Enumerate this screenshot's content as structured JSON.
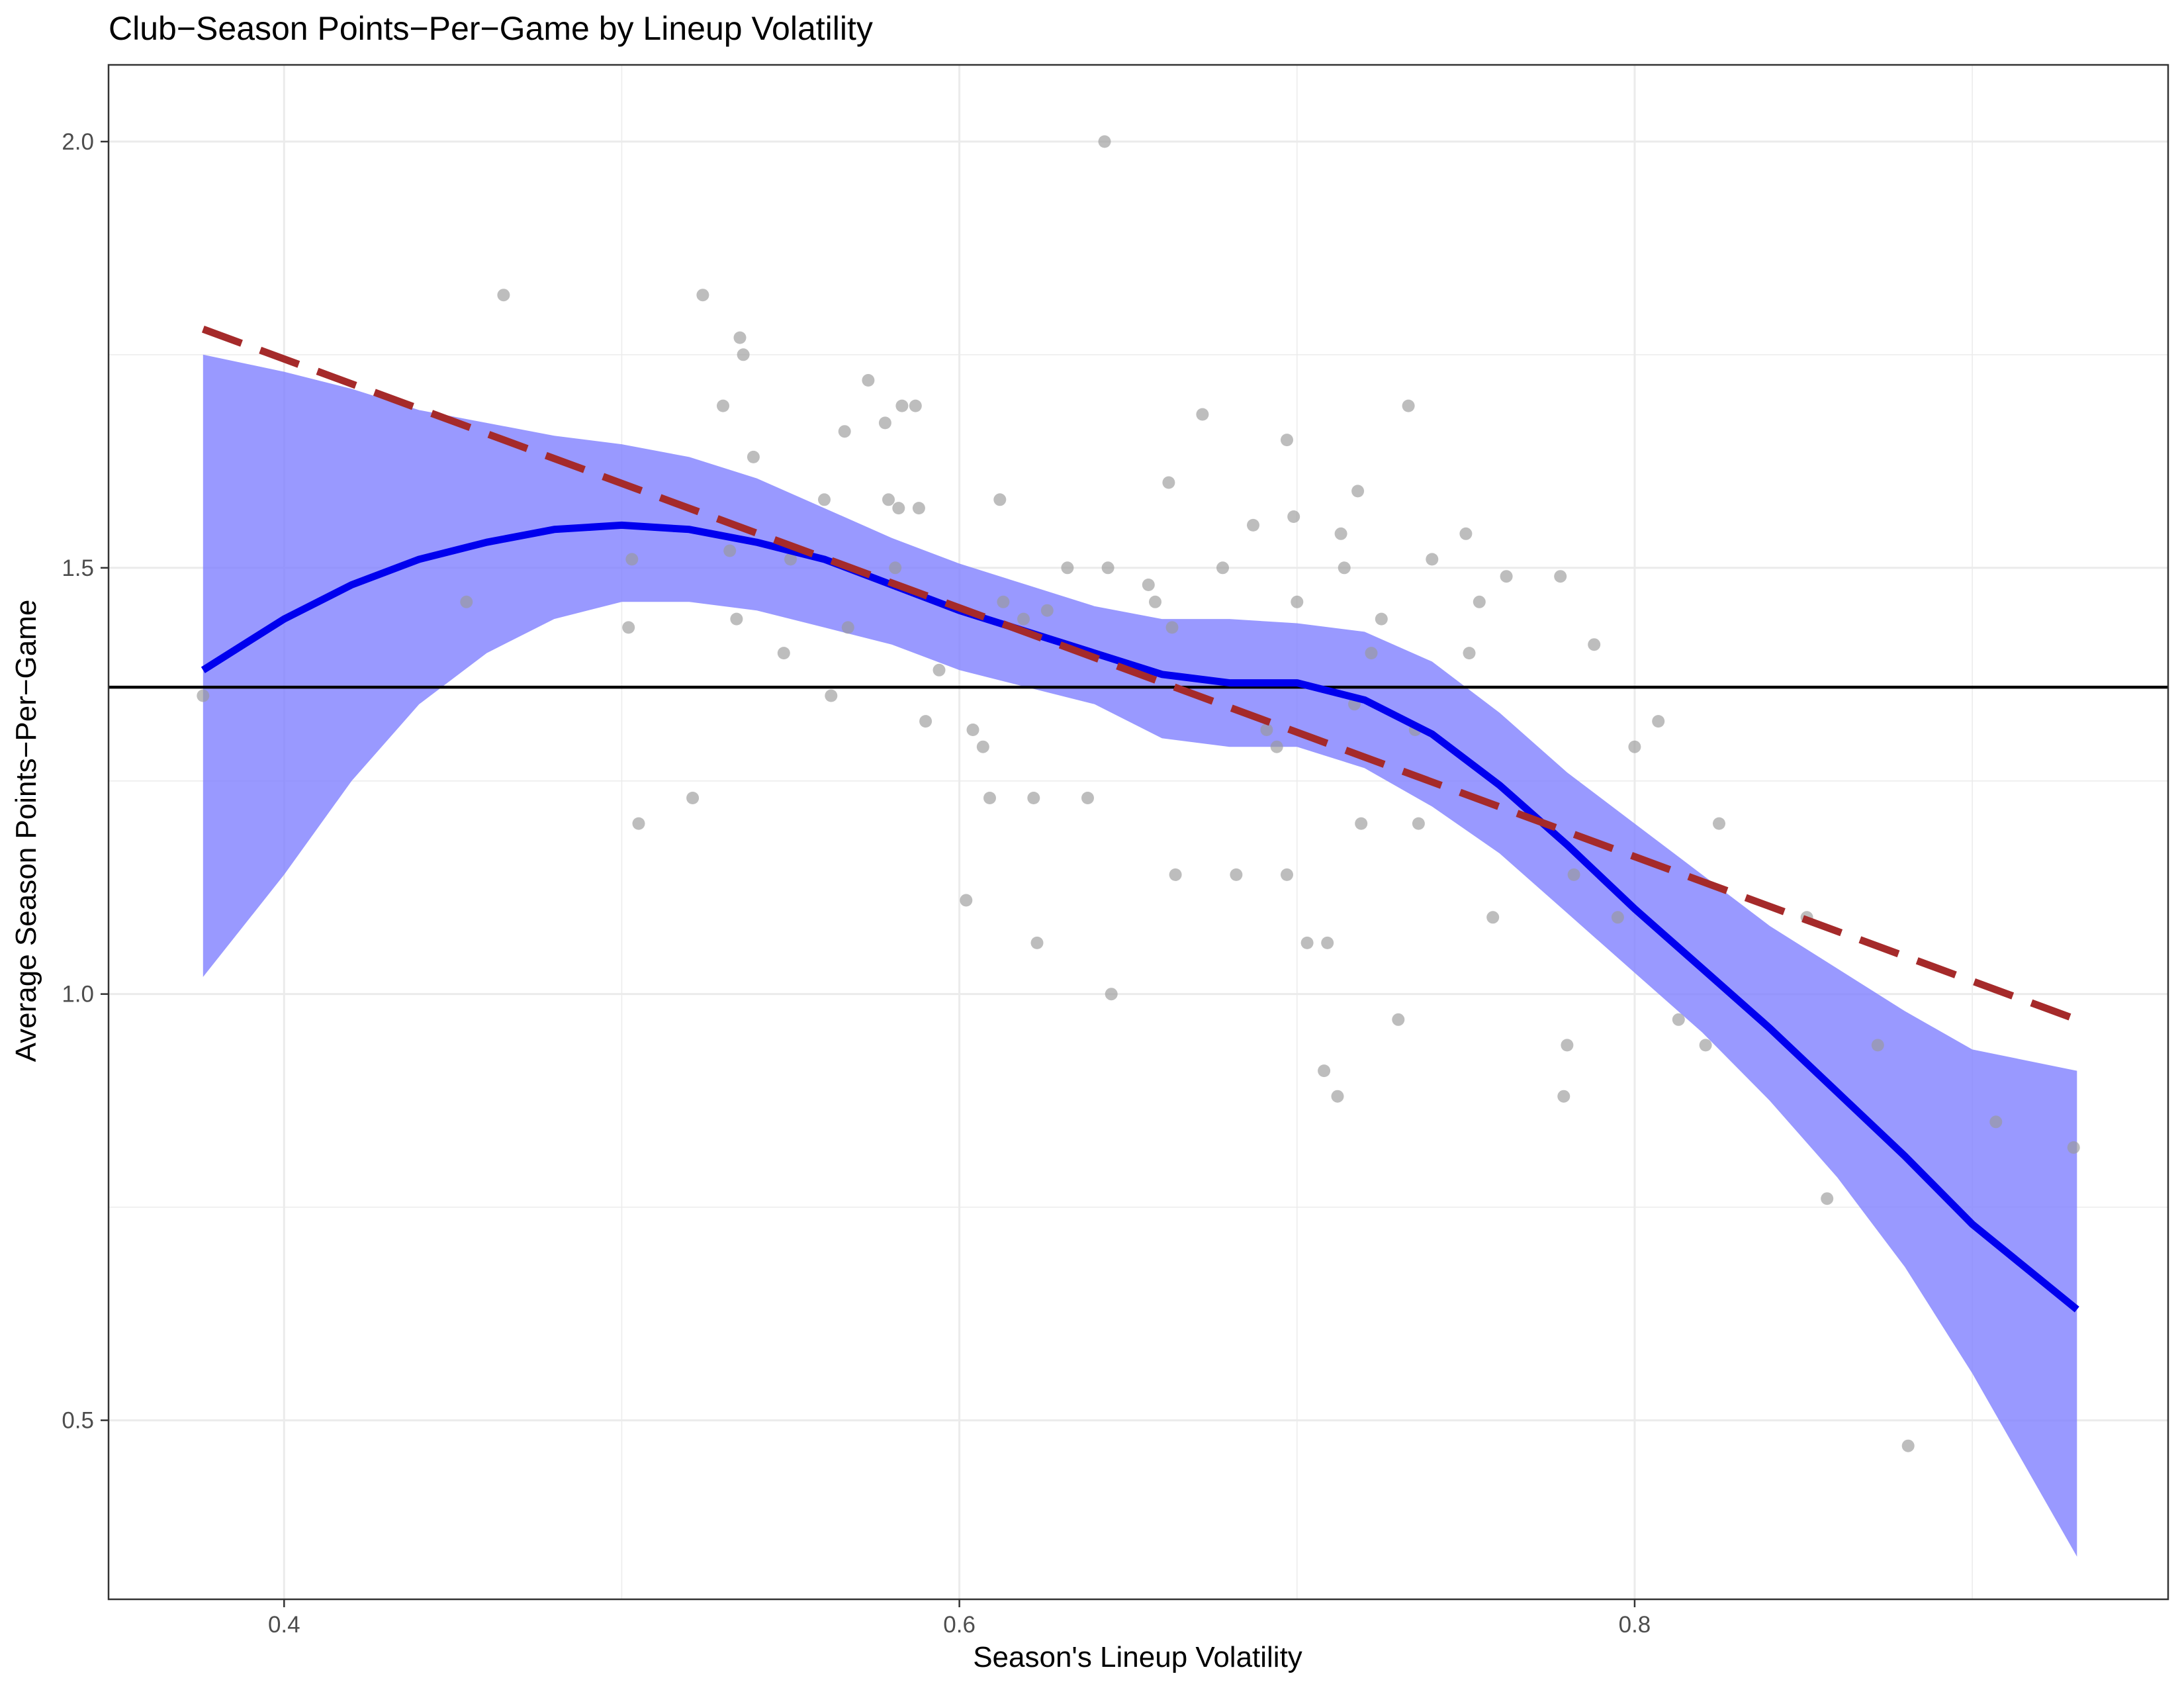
{
  "chart_data": {
    "type": "scatter",
    "title": "Club−Season Points−Per−Game by Lineup Volatility",
    "xlabel": "Season's Lineup Volatility",
    "ylabel": "Average Season Points−Per−Game",
    "xlim": [
      0.348,
      0.958
    ],
    "ylim": [
      0.29,
      2.09
    ],
    "x_ticks": [
      0.4,
      0.6,
      0.8
    ],
    "x_tick_labels": [
      "0.4",
      "0.6",
      "0.8"
    ],
    "y_ticks": [
      0.5,
      1.0,
      1.5,
      2.0
    ],
    "y_tick_labels": [
      "0.5",
      "1.0",
      "1.5",
      "2.0"
    ],
    "grid": true,
    "colors": {
      "points": "#999999",
      "smooth_line": "#0000ee",
      "confidence_band": "#8080ff",
      "linear_fit": "#a52a2a",
      "reference_line": "#000000",
      "grid": "#ebebeb",
      "panel_border": "#333333"
    },
    "reference_line": {
      "y": 1.36
    },
    "linear_fit": {
      "x": [
        0.376,
        0.931
      ],
      "y": [
        1.78,
        0.97
      ]
    },
    "smooth": {
      "x": [
        0.376,
        0.4,
        0.42,
        0.44,
        0.46,
        0.48,
        0.5,
        0.52,
        0.54,
        0.56,
        0.58,
        0.6,
        0.62,
        0.64,
        0.66,
        0.68,
        0.7,
        0.72,
        0.74,
        0.76,
        0.78,
        0.8,
        0.82,
        0.84,
        0.86,
        0.88,
        0.9,
        0.931
      ],
      "y": [
        1.38,
        1.44,
        1.48,
        1.51,
        1.53,
        1.545,
        1.55,
        1.545,
        1.53,
        1.51,
        1.48,
        1.45,
        1.425,
        1.4,
        1.375,
        1.365,
        1.365,
        1.345,
        1.305,
        1.245,
        1.175,
        1.1,
        1.03,
        0.96,
        0.885,
        0.81,
        0.73,
        0.63
      ],
      "lower": [
        1.02,
        1.14,
        1.25,
        1.34,
        1.4,
        1.44,
        1.46,
        1.46,
        1.45,
        1.43,
        1.41,
        1.38,
        1.36,
        1.34,
        1.3,
        1.29,
        1.29,
        1.265,
        1.22,
        1.165,
        1.095,
        1.025,
        0.955,
        0.875,
        0.785,
        0.68,
        0.555,
        0.34
      ],
      "upper": [
        1.75,
        1.73,
        1.71,
        1.685,
        1.67,
        1.655,
        1.645,
        1.63,
        1.605,
        1.57,
        1.535,
        1.505,
        1.48,
        1.455,
        1.44,
        1.44,
        1.435,
        1.425,
        1.39,
        1.33,
        1.26,
        1.2,
        1.14,
        1.08,
        1.03,
        0.98,
        0.935,
        0.91
      ]
    },
    "points": {
      "x": [
        0.376,
        0.454,
        0.465,
        0.502,
        0.503,
        0.505,
        0.521,
        0.524,
        0.53,
        0.532,
        0.534,
        0.535,
        0.536,
        0.539,
        0.548,
        0.55,
        0.56,
        0.562,
        0.566,
        0.567,
        0.573,
        0.578,
        0.579,
        0.581,
        0.582,
        0.583,
        0.587,
        0.588,
        0.59,
        0.594,
        0.602,
        0.604,
        0.607,
        0.609,
        0.612,
        0.613,
        0.619,
        0.622,
        0.623,
        0.626,
        0.638,
        0.632,
        0.643,
        0.644,
        0.645,
        0.656,
        0.658,
        0.662,
        0.663,
        0.664,
        0.672,
        0.678,
        0.682,
        0.687,
        0.691,
        0.694,
        0.697,
        0.697,
        0.699,
        0.7,
        0.703,
        0.708,
        0.709,
        0.712,
        0.713,
        0.714,
        0.717,
        0.718,
        0.719,
        0.722,
        0.725,
        0.73,
        0.733,
        0.735,
        0.736,
        0.74,
        0.75,
        0.751,
        0.754,
        0.758,
        0.762,
        0.778,
        0.779,
        0.78,
        0.782,
        0.788,
        0.795,
        0.8,
        0.807,
        0.813,
        0.821,
        0.825,
        0.851,
        0.857,
        0.872,
        0.881,
        0.907,
        0.93
      ],
      "y": [
        1.35,
        1.46,
        1.82,
        1.43,
        1.51,
        1.2,
        1.23,
        1.82,
        1.69,
        1.52,
        1.44,
        1.77,
        1.75,
        1.63,
        1.4,
        1.51,
        1.58,
        1.35,
        1.66,
        1.43,
        1.72,
        1.67,
        1.58,
        1.5,
        1.57,
        1.69,
        1.69,
        1.57,
        1.32,
        1.38,
        1.11,
        1.31,
        1.29,
        1.23,
        1.58,
        1.46,
        1.44,
        1.23,
        1.06,
        1.45,
        1.23,
        1.5,
        2.0,
        1.5,
        1.0,
        1.48,
        1.46,
        1.6,
        1.43,
        1.14,
        1.68,
        1.5,
        1.14,
        1.55,
        1.31,
        1.29,
        1.65,
        1.14,
        1.56,
        1.46,
        1.06,
        0.91,
        1.06,
        0.88,
        1.54,
        1.5,
        1.34,
        1.59,
        1.2,
        1.4,
        1.44,
        0.97,
        1.69,
        1.31,
        1.2,
        1.51,
        1.54,
        1.4,
        1.46,
        1.09,
        1.49,
        1.49,
        0.88,
        0.94,
        1.14,
        1.41,
        1.09,
        1.29,
        1.32,
        0.97,
        0.94,
        1.2,
        1.09,
        0.76,
        0.94,
        0.47,
        0.85,
        0.82
      ]
    }
  }
}
